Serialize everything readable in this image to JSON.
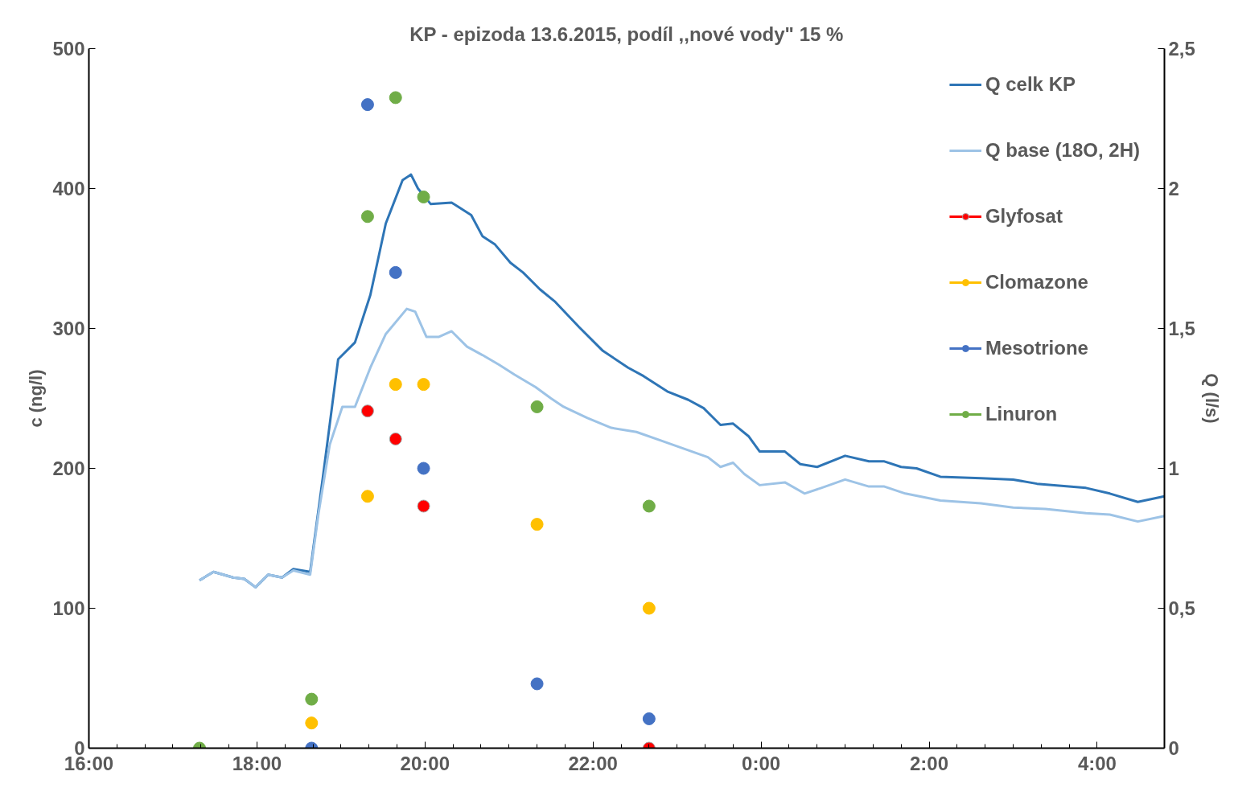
{
  "chart_data": {
    "type": "scatter",
    "title": "KP - epizoda 13.6.2015, podíl ,,nové vody\" 15 %",
    "ylabel": "c (ng/l)",
    "y2label": "Q (l/s)",
    "xlim": [
      "2015-06-13T16:00",
      "2015-06-14T04:48"
    ],
    "xticks": [
      {
        "value": "2015-06-13T16:00",
        "label": "16:00"
      },
      {
        "value": "2015-06-13T18:00",
        "label": "18:00"
      },
      {
        "value": "2015-06-13T20:00",
        "label": "20:00"
      },
      {
        "value": "2015-06-13T22:00",
        "label": "22:00"
      },
      {
        "value": "2015-06-14T00:00",
        "label": "0:00"
      },
      {
        "value": "2015-06-14T02:00",
        "label": "2:00"
      },
      {
        "value": "2015-06-14T04:00",
        "label": "4:00"
      }
    ],
    "ylim": [
      0,
      500
    ],
    "yticks": [
      0,
      100,
      200,
      300,
      400,
      500
    ],
    "y2lim": [
      0,
      2.5
    ],
    "y2ticks": [
      {
        "value": 0,
        "label": "0"
      },
      {
        "value": 0.5,
        "label": "0,5"
      },
      {
        "value": 1,
        "label": "1"
      },
      {
        "value": 1.5,
        "label": "1,5"
      },
      {
        "value": 2,
        "label": "2"
      },
      {
        "value": 2.5,
        "label": "2,5"
      }
    ],
    "grid": false,
    "legend": "top right",
    "marker": "circle",
    "series": [
      {
        "name": "Q celk KP",
        "type": "line",
        "marker": "none",
        "axis": "y2",
        "color": "#2e75b6",
        "x": [
          "2015-06-13T17:19",
          "2015-06-13T17:29",
          "2015-06-13T17:43",
          "2015-06-13T17:51",
          "2015-06-13T17:59",
          "2015-06-13T18:08",
          "2015-06-13T18:18",
          "2015-06-13T18:26",
          "2015-06-13T18:38",
          "2015-06-13T18:47",
          "2015-06-13T18:58",
          "2015-06-13T19:10",
          "2015-06-13T19:21",
          "2015-06-13T19:32",
          "2015-06-13T19:44",
          "2015-06-13T19:50",
          "2015-06-13T19:55",
          "2015-06-13T20:04",
          "2015-06-13T20:19",
          "2015-06-13T20:33",
          "2015-06-13T20:41",
          "2015-06-13T20:50",
          "2015-06-13T21:01",
          "2015-06-13T21:10",
          "2015-06-13T21:22",
          "2015-06-13T21:33",
          "2015-06-13T21:50",
          "2015-06-13T22:07",
          "2015-06-13T22:25",
          "2015-06-13T22:36",
          "2015-06-13T22:53",
          "2015-06-13T23:08",
          "2015-06-13T23:19",
          "2015-06-13T23:31",
          "2015-06-13T23:40",
          "2015-06-13T23:51",
          "2015-06-13T23:59",
          "2015-06-14T00:17",
          "2015-06-14T00:28",
          "2015-06-14T00:40",
          "2015-06-14T01:00",
          "2015-06-14T01:17",
          "2015-06-14T01:28",
          "2015-06-14T01:40",
          "2015-06-14T01:51",
          "2015-06-14T02:08",
          "2015-06-14T02:37",
          "2015-06-14T03:00",
          "2015-06-14T03:17",
          "2015-06-14T03:52",
          "2015-06-14T04:09",
          "2015-06-14T04:29",
          "2015-06-14T04:48"
        ],
        "values": [
          0.6,
          0.63,
          0.61,
          0.605,
          0.575,
          0.62,
          0.61,
          0.64,
          0.63,
          0.965,
          1.39,
          1.45,
          1.62,
          1.875,
          2.03,
          2.05,
          2.0,
          1.945,
          1.95,
          1.905,
          1.83,
          1.8,
          1.735,
          1.7,
          1.64,
          1.595,
          1.505,
          1.42,
          1.36,
          1.33,
          1.275,
          1.245,
          1.215,
          1.155,
          1.16,
          1.115,
          1.06,
          1.06,
          1.015,
          1.005,
          1.045,
          1.025,
          1.025,
          1.005,
          1.0,
          0.97,
          0.965,
          0.96,
          0.945,
          0.93,
          0.91,
          0.88,
          0.9
        ]
      },
      {
        "name": "Q base (18O, 2H)",
        "type": "line",
        "marker": "none",
        "axis": "y2",
        "color": "#9dc3e6",
        "x": [
          "2015-06-13T17:19",
          "2015-06-13T17:29",
          "2015-06-13T17:43",
          "2015-06-13T17:51",
          "2015-06-13T17:59",
          "2015-06-13T18:08",
          "2015-06-13T18:18",
          "2015-06-13T18:26",
          "2015-06-13T18:38",
          "2015-06-13T18:44",
          "2015-06-13T18:52",
          "2015-06-13T19:01",
          "2015-06-13T19:10",
          "2015-06-13T19:21",
          "2015-06-13T19:32",
          "2015-06-13T19:47",
          "2015-06-13T19:53",
          "2015-06-13T20:01",
          "2015-06-13T20:10",
          "2015-06-13T20:19",
          "2015-06-13T20:30",
          "2015-06-13T20:41",
          "2015-06-13T20:53",
          "2015-06-13T21:04",
          "2015-06-13T21:19",
          "2015-06-13T21:30",
          "2015-06-13T21:39",
          "2015-06-13T21:56",
          "2015-06-13T22:13",
          "2015-06-13T22:31",
          "2015-06-13T22:48",
          "2015-06-13T23:05",
          "2015-06-13T23:22",
          "2015-06-13T23:31",
          "2015-06-13T23:40",
          "2015-06-13T23:48",
          "2015-06-13T23:59",
          "2015-06-14T00:17",
          "2015-06-14T00:31",
          "2015-06-14T00:43",
          "2015-06-14T01:00",
          "2015-06-14T01:17",
          "2015-06-14T01:28",
          "2015-06-14T01:43",
          "2015-06-14T02:08",
          "2015-06-14T02:37",
          "2015-06-14T03:00",
          "2015-06-14T03:23",
          "2015-06-14T03:52",
          "2015-06-14T04:09",
          "2015-06-14T04:29",
          "2015-06-14T04:48"
        ],
        "values": [
          0.6,
          0.63,
          0.61,
          0.605,
          0.575,
          0.62,
          0.61,
          0.635,
          0.62,
          0.84,
          1.085,
          1.22,
          1.22,
          1.36,
          1.48,
          1.57,
          1.56,
          1.47,
          1.47,
          1.49,
          1.435,
          1.405,
          1.37,
          1.335,
          1.29,
          1.25,
          1.22,
          1.18,
          1.145,
          1.13,
          1.1,
          1.07,
          1.04,
          1.005,
          1.02,
          0.98,
          0.94,
          0.95,
          0.91,
          0.93,
          0.96,
          0.935,
          0.935,
          0.91,
          0.885,
          0.875,
          0.86,
          0.855,
          0.84,
          0.835,
          0.81,
          0.83
        ]
      },
      {
        "name": "Glyfosat",
        "color": "#ff0000",
        "x": [
          "2015-06-13T19:19",
          "2015-06-13T19:39",
          "2015-06-13T19:59",
          "2015-06-13T22:40"
        ],
        "values": [
          241,
          221,
          173,
          0
        ]
      },
      {
        "name": "Clomazone",
        "color": "#ffc000",
        "x": [
          "2015-06-13T18:39",
          "2015-06-13T19:19",
          "2015-06-13T19:39",
          "2015-06-13T19:59",
          "2015-06-13T21:20",
          "2015-06-13T22:40"
        ],
        "values": [
          18,
          180,
          260,
          260,
          160,
          100
        ]
      },
      {
        "name": "Mesotrione",
        "color": "#4472c4",
        "x": [
          "2015-06-13T18:39",
          "2015-06-13T19:19",
          "2015-06-13T19:39",
          "2015-06-13T19:59",
          "2015-06-13T21:20",
          "2015-06-13T22:40"
        ],
        "values": [
          0,
          460,
          340,
          200,
          46,
          21
        ]
      },
      {
        "name": "Linuron",
        "color": "#70ad47",
        "x": [
          "2015-06-13T17:19",
          "2015-06-13T18:39",
          "2015-06-13T19:19",
          "2015-06-13T19:39",
          "2015-06-13T19:59",
          "2015-06-13T21:20",
          "2015-06-13T22:40"
        ],
        "values": [
          0,
          35,
          380,
          465,
          394,
          244,
          173
        ]
      }
    ]
  }
}
